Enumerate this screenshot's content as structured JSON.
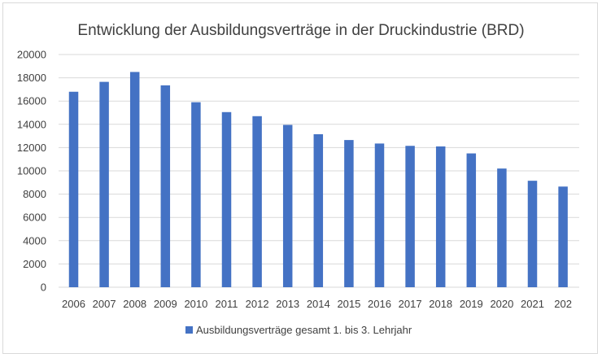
{
  "colors": {
    "bar": "#4472c4",
    "grid": "#d9d9d9",
    "text": "#404040"
  },
  "chart_data": {
    "type": "bar",
    "title": "Entwicklung der Ausbildungsverträge in der Druckindustrie (BRD)",
    "xlabel": "",
    "ylabel": "",
    "categories": [
      "2006",
      "2007",
      "2008",
      "2009",
      "2010",
      "2011",
      "2012",
      "2013",
      "2014",
      "2015",
      "2016",
      "2017",
      "2018",
      "2019",
      "2020",
      "2021",
      "202"
    ],
    "series": [
      {
        "name": "Ausbildungsverträge gesamt 1. bis 3. Lehrjahr",
        "values": [
          16800,
          17650,
          18500,
          17350,
          15900,
          15050,
          14700,
          13950,
          13150,
          12650,
          12350,
          12150,
          12100,
          11500,
          10200,
          9150,
          8650
        ]
      }
    ],
    "ylim": [
      0,
      20000
    ],
    "yticks": [
      "0",
      "2000",
      "4000",
      "6000",
      "8000",
      "10000",
      "12000",
      "14000",
      "16000",
      "18000",
      "20000"
    ],
    "grid": true,
    "legend_position": "bottom"
  }
}
